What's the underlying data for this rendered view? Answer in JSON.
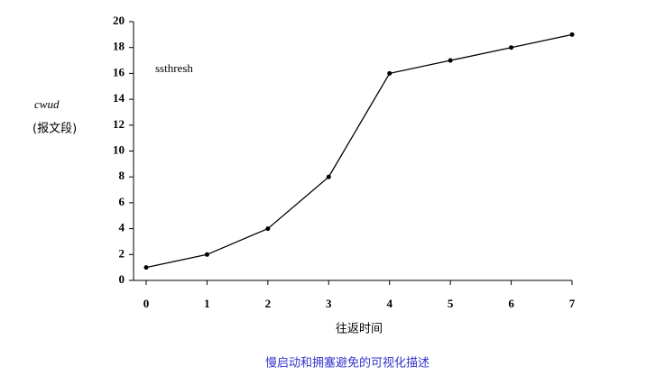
{
  "chart_data": {
    "type": "line",
    "x": [
      0,
      1,
      2,
      3,
      4,
      5,
      6,
      7
    ],
    "values": [
      1,
      2,
      4,
      8,
      16,
      17,
      18,
      19
    ],
    "color": "#000000",
    "xlim": [
      0,
      7
    ],
    "xticks": [
      0,
      1,
      2,
      3,
      4,
      5,
      6,
      7
    ],
    "ylim": [
      0,
      20
    ],
    "yticks": [
      0,
      2,
      4,
      6,
      8,
      10,
      12,
      14,
      16,
      18,
      20
    ],
    "xlabel": "往返时间",
    "ylabel": "cwud",
    "ylabel_unit": "(报文段)",
    "annotation": "ssthresh",
    "caption": "慢启动和拥塞避免的可视化描述"
  }
}
